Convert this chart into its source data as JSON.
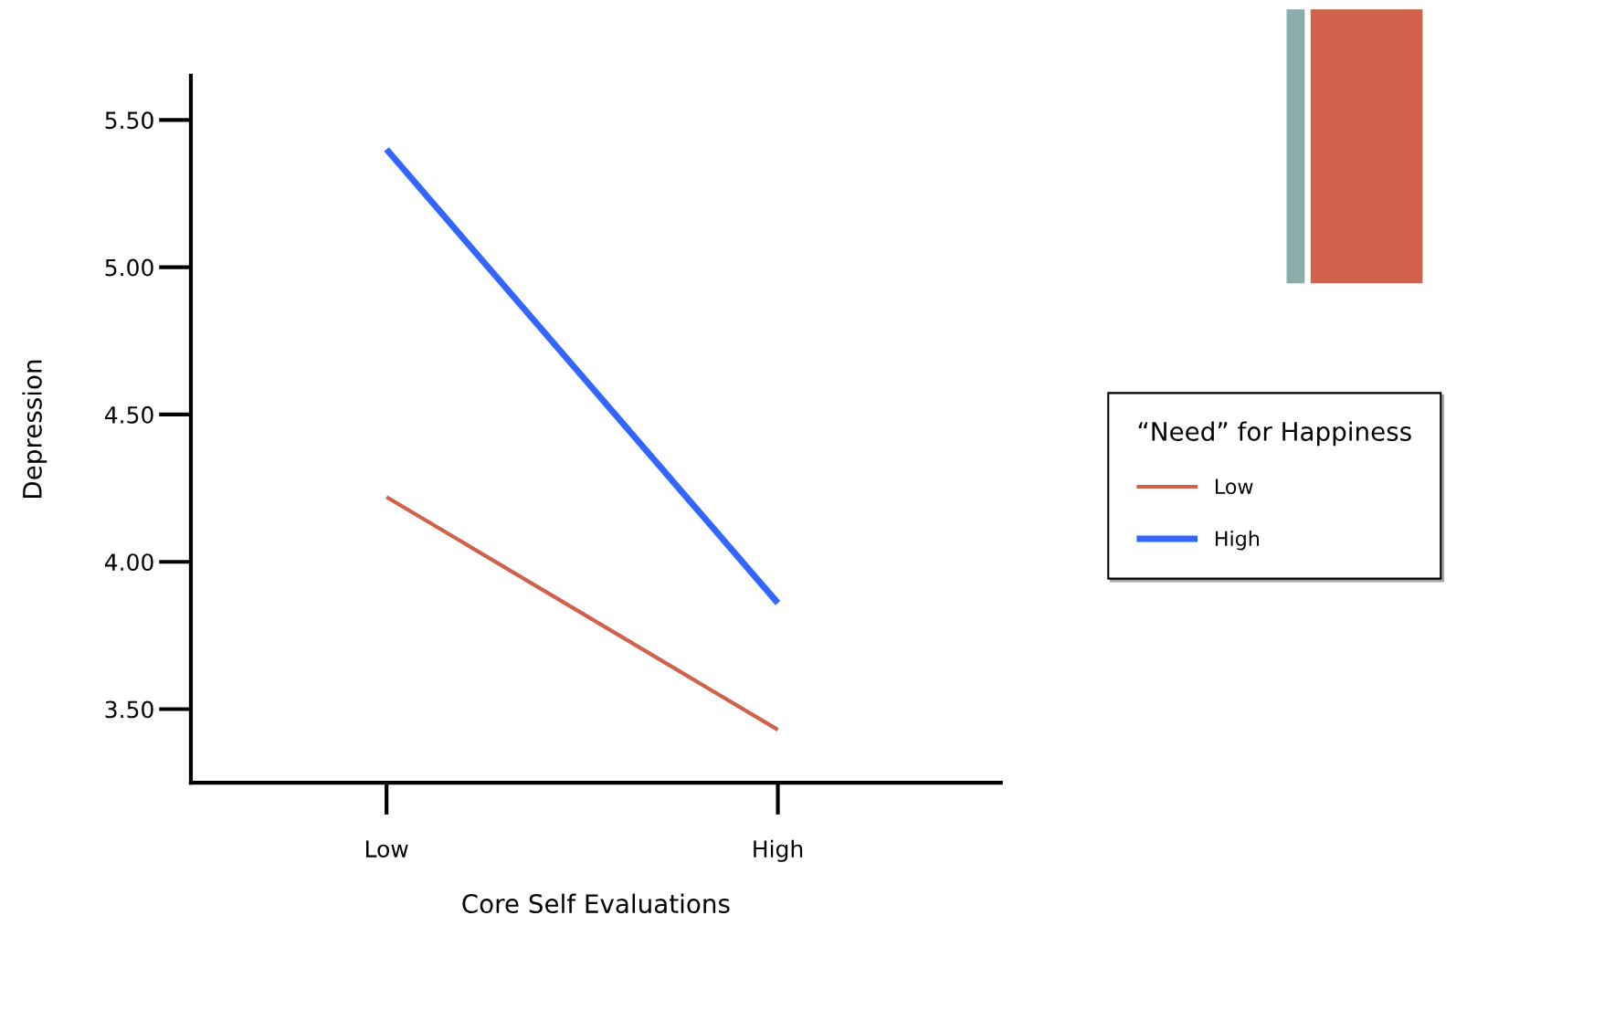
{
  "chart_data": {
    "type": "line",
    "xlabel": "Core Self Evaluations",
    "ylabel": "Depression",
    "legend_title": "“Need” for Happiness",
    "categories": [
      "Low",
      "High"
    ],
    "series": [
      {
        "name": "Low",
        "color": "#d0614a",
        "values": [
          4.22,
          3.43
        ]
      },
      {
        "name": "High",
        "color": "#3366ff",
        "values": [
          5.4,
          3.86
        ]
      }
    ],
    "ylim": [
      3.25,
      5.65
    ],
    "yticks": [
      {
        "value": 3.5,
        "label": "3.50"
      },
      {
        "value": 4.0,
        "label": "4.00"
      },
      {
        "value": 4.5,
        "label": "4.50"
      },
      {
        "value": 5.0,
        "label": "5.00"
      },
      {
        "value": 5.5,
        "label": "5.50"
      }
    ],
    "grid": false,
    "legend": "right",
    "marker": "none",
    "line_style": "solid"
  }
}
